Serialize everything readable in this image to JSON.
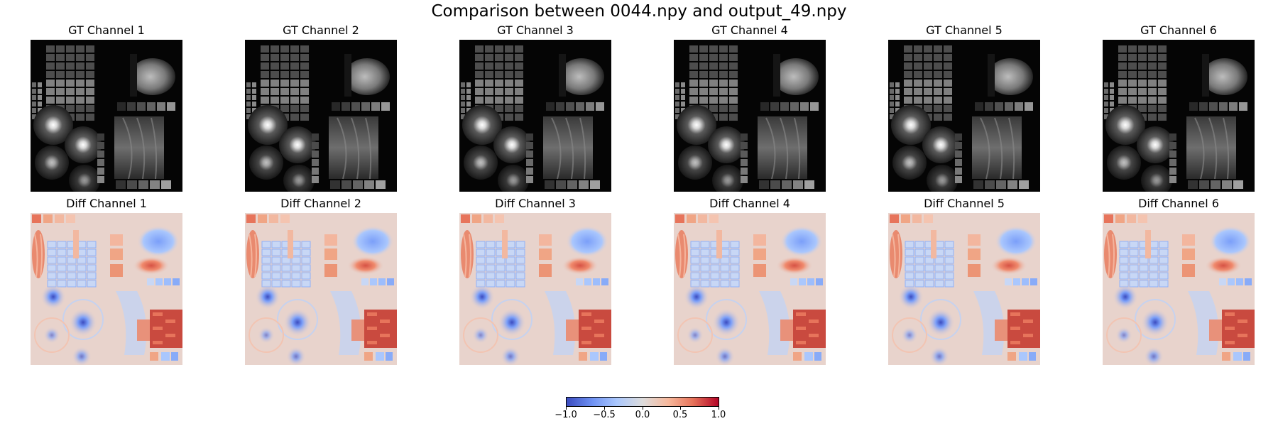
{
  "figure": {
    "title": "Comparison between 0044.npy and output_49.npy"
  },
  "gt_panels": [
    {
      "title": "GT Channel 1"
    },
    {
      "title": "GT Channel 2"
    },
    {
      "title": "GT Channel 3"
    },
    {
      "title": "GT Channel 4"
    },
    {
      "title": "GT Channel 5"
    },
    {
      "title": "GT Channel 6"
    }
  ],
  "diff_panels": [
    {
      "title": "Diff Channel 1"
    },
    {
      "title": "Diff Channel 2"
    },
    {
      "title": "Diff Channel 3"
    },
    {
      "title": "Diff Channel 4"
    },
    {
      "title": "Diff Channel 5"
    },
    {
      "title": "Diff Channel 6"
    }
  ],
  "colorbar": {
    "colormap": "coolwarm",
    "range": [
      -1.0,
      1.0
    ],
    "ticks": [
      "−1.0",
      "−0.5",
      "0.0",
      "0.5",
      "1.0"
    ]
  },
  "colors": {
    "gt_background": "#050505",
    "diff_background": "#e8d3cc",
    "positive": "#b40426",
    "negative": "#3b4cc0"
  }
}
